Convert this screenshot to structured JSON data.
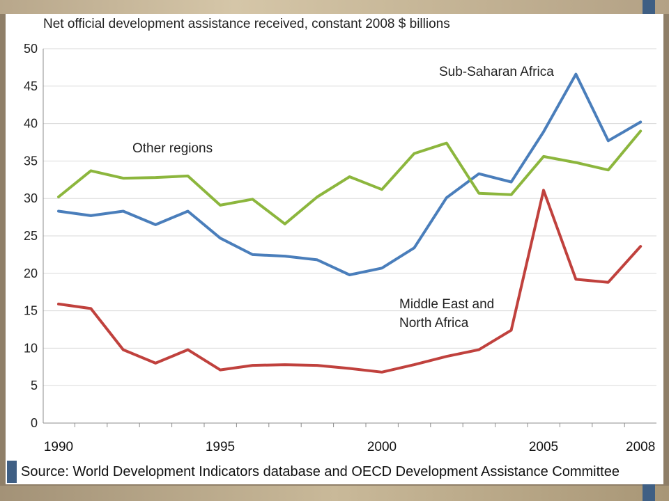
{
  "chart_data": {
    "type": "line",
    "title": "Net official development assistance received, constant 2008 $ billions",
    "x": [
      1990,
      1991,
      1992,
      1993,
      1994,
      1995,
      1996,
      1997,
      1998,
      1999,
      2000,
      2001,
      2002,
      2003,
      2004,
      2005,
      2006,
      2007,
      2008
    ],
    "x_tick_labels": [
      "1990",
      "1995",
      "2000",
      "2005",
      "2008"
    ],
    "x_tick_values": [
      1990,
      1995,
      2000,
      2005,
      2008
    ],
    "y_ticks": [
      0,
      5,
      10,
      15,
      20,
      25,
      30,
      35,
      40,
      45,
      50
    ],
    "ylim": [
      0,
      50
    ],
    "grid": true,
    "series": [
      {
        "name": "Sub-Saharan Africa",
        "color": "#4a7ebb",
        "values": [
          28.3,
          27.7,
          28.3,
          26.5,
          28.3,
          24.7,
          22.5,
          22.3,
          21.8,
          19.8,
          20.7,
          23.4,
          30.1,
          33.3,
          32.2,
          38.9,
          46.6,
          37.7,
          40.2
        ]
      },
      {
        "name": "Other regions",
        "color": "#8cb63d",
        "values": [
          30.2,
          33.7,
          32.7,
          32.8,
          33.0,
          29.1,
          29.9,
          26.6,
          30.2,
          32.9,
          31.2,
          36.0,
          37.4,
          30.7,
          30.5,
          35.6,
          34.8,
          33.8,
          39.0
        ]
      },
      {
        "name": "Middle East and North Africa",
        "color": "#c0413d",
        "values": [
          15.9,
          15.3,
          9.8,
          8.0,
          9.8,
          7.1,
          7.7,
          7.8,
          7.7,
          7.3,
          6.8,
          7.8,
          8.9,
          9.8,
          12.4,
          31.1,
          19.2,
          18.8,
          23.6
        ]
      }
    ],
    "annotations": {
      "ssa": "Sub-Saharan Africa",
      "other": "Other regions",
      "mena_line1": "Middle East and",
      "mena_line2": "North Africa"
    },
    "source": "Source: World Development Indicators database and OECD Development Assistance Committee"
  }
}
